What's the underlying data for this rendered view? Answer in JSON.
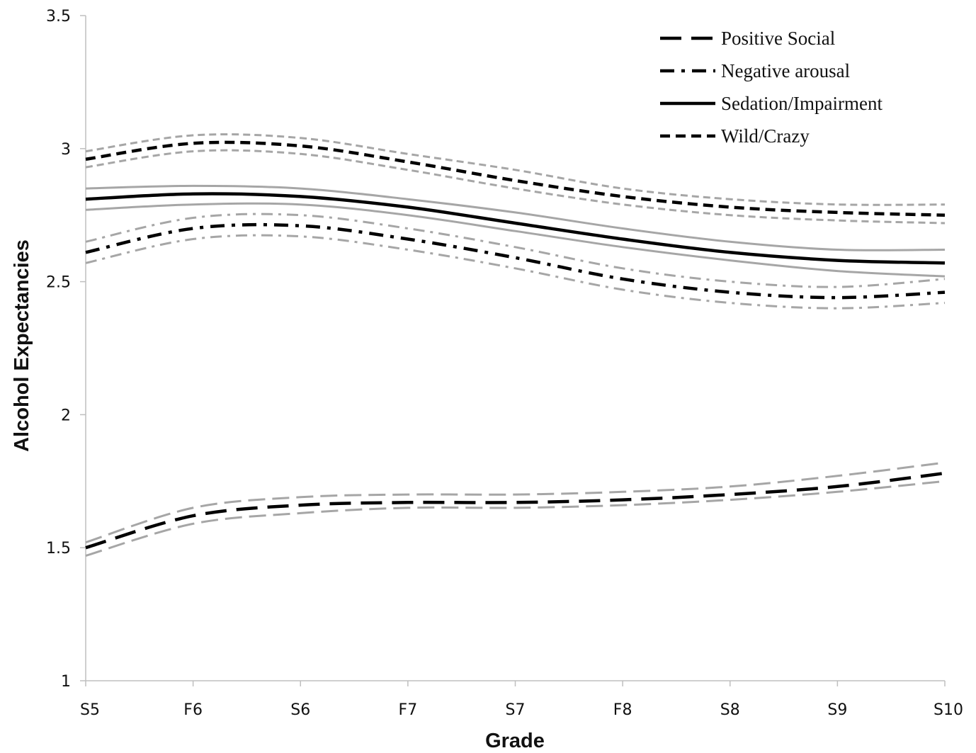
{
  "chart_data": {
    "type": "line",
    "xlabel": "Grade",
    "ylabel": "Alcohol Expectancies",
    "categories": [
      "S5",
      "F6",
      "S6",
      "F7",
      "S7",
      "F8",
      "S8",
      "S9",
      "S10"
    ],
    "ylim": [
      1,
      3.5
    ],
    "yticks": [
      "1",
      "1.5",
      "2",
      "2.5",
      "3",
      "3.5"
    ],
    "grid": false,
    "legend_position": "top-right",
    "series": [
      {
        "name": "Positive Social",
        "style": "long-dash",
        "values": [
          1.5,
          1.62,
          1.66,
          1.67,
          1.67,
          1.68,
          1.7,
          1.73,
          1.78
        ],
        "ci_upper": [
          1.52,
          1.65,
          1.69,
          1.7,
          1.7,
          1.71,
          1.73,
          1.77,
          1.82
        ],
        "ci_lower": [
          1.47,
          1.59,
          1.63,
          1.65,
          1.65,
          1.66,
          1.68,
          1.71,
          1.75
        ]
      },
      {
        "name": "Negative arousal",
        "style": "dash-dot",
        "values": [
          2.61,
          2.7,
          2.71,
          2.66,
          2.59,
          2.51,
          2.46,
          2.44,
          2.46
        ],
        "ci_upper": [
          2.65,
          2.74,
          2.75,
          2.7,
          2.63,
          2.55,
          2.5,
          2.48,
          2.51
        ],
        "ci_lower": [
          2.57,
          2.66,
          2.67,
          2.62,
          2.55,
          2.47,
          2.42,
          2.4,
          2.42
        ]
      },
      {
        "name": "Sedation/Impairment",
        "style": "solid",
        "values": [
          2.81,
          2.83,
          2.82,
          2.78,
          2.72,
          2.66,
          2.61,
          2.58,
          2.57
        ],
        "ci_upper": [
          2.85,
          2.86,
          2.85,
          2.81,
          2.76,
          2.7,
          2.65,
          2.62,
          2.62
        ],
        "ci_lower": [
          2.77,
          2.79,
          2.79,
          2.75,
          2.69,
          2.63,
          2.58,
          2.54,
          2.52
        ]
      },
      {
        "name": "Wild/Crazy",
        "style": "short-dash",
        "values": [
          2.96,
          3.02,
          3.01,
          2.95,
          2.88,
          2.82,
          2.78,
          2.76,
          2.75
        ],
        "ci_upper": [
          2.99,
          3.05,
          3.04,
          2.98,
          2.92,
          2.85,
          2.81,
          2.79,
          2.79
        ],
        "ci_lower": [
          2.93,
          2.99,
          2.98,
          2.92,
          2.85,
          2.79,
          2.75,
          2.73,
          2.72
        ]
      }
    ],
    "colors": {
      "line": "#000000",
      "confidence_band": "#a6a6a6",
      "axis": "#bfbfbf"
    }
  }
}
